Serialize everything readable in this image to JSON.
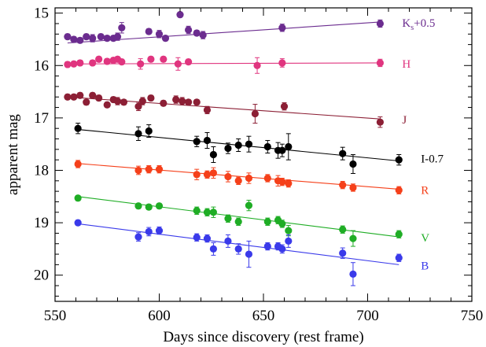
{
  "chart_data": {
    "type": "scatter",
    "title": "",
    "xlabel": "Days since discovery (rest frame)",
    "ylabel": "apparent mag",
    "xlim": [
      550,
      750
    ],
    "ylim": [
      20.5,
      14.9
    ],
    "y_inverted": true,
    "grid": false,
    "legend": "inline labels at right of each series",
    "x_ticks": [
      550,
      600,
      650,
      700,
      750
    ],
    "y_ticks": [
      15,
      16,
      17,
      18,
      19,
      20
    ],
    "x_tick_labels": [
      "550",
      "600",
      "650",
      "700",
      "750"
    ],
    "y_tick_labels": [
      "15",
      "16",
      "17",
      "18",
      "19",
      "20"
    ],
    "series": [
      {
        "name": "Ks+0.5",
        "label_main": "K",
        "label_sub": "s",
        "label_tail": "+0.5",
        "color": "#6b2c8f",
        "fit": [
          [
            556,
            15.57
          ],
          [
            706,
            15.17
          ]
        ],
        "points": [
          [
            556,
            15.45,
            0.05
          ],
          [
            559,
            15.5,
            0.05
          ],
          [
            562,
            15.52,
            0.05
          ],
          [
            565,
            15.45,
            0.05
          ],
          [
            568,
            15.48,
            0.07
          ],
          [
            572,
            15.45,
            0.05
          ],
          [
            575,
            15.48,
            0.05
          ],
          [
            578,
            15.48,
            0.05
          ],
          [
            580,
            15.45,
            0.07
          ],
          [
            582,
            15.28,
            0.1
          ],
          [
            595,
            15.35,
            0.05
          ],
          [
            600,
            15.4,
            0.07
          ],
          [
            603,
            15.48,
            0.05
          ],
          [
            610,
            15.03,
            0.05
          ],
          [
            614,
            15.32,
            0.07
          ],
          [
            618,
            15.38,
            0.05
          ],
          [
            621,
            15.42,
            0.07
          ],
          [
            659,
            15.28,
            0.07
          ],
          [
            706,
            15.2,
            0.07
          ]
        ]
      },
      {
        "name": "H",
        "color": "#e0357f",
        "fit": [
          [
            556,
            15.97
          ],
          [
            706,
            15.95
          ]
        ],
        "points": [
          [
            556,
            15.98,
            0.05
          ],
          [
            559,
            15.97,
            0.05
          ],
          [
            562,
            15.95,
            0.05
          ],
          [
            568,
            15.95,
            0.05
          ],
          [
            571,
            15.88,
            0.05
          ],
          [
            575,
            15.92,
            0.05
          ],
          [
            578,
            15.9,
            0.05
          ],
          [
            580,
            15.88,
            0.05
          ],
          [
            582,
            15.93,
            0.05
          ],
          [
            591,
            15.97,
            0.1
          ],
          [
            596,
            15.88,
            0.05
          ],
          [
            602,
            15.88,
            0.05
          ],
          [
            609,
            15.97,
            0.12
          ],
          [
            614,
            15.93,
            0.05
          ],
          [
            647,
            16.0,
            0.15
          ],
          [
            659,
            15.95,
            0.08
          ],
          [
            706,
            15.95,
            0.07
          ]
        ]
      },
      {
        "name": "J",
        "color": "#8c1f35",
        "fit": [
          [
            556,
            16.6
          ],
          [
            706,
            17.02
          ]
        ],
        "points": [
          [
            556,
            16.6,
            0.05
          ],
          [
            559,
            16.6,
            0.05
          ],
          [
            562,
            16.57,
            0.05
          ],
          [
            565,
            16.7,
            0.05
          ],
          [
            568,
            16.57,
            0.05
          ],
          [
            571,
            16.62,
            0.05
          ],
          [
            575,
            16.75,
            0.05
          ],
          [
            578,
            16.65,
            0.05
          ],
          [
            580,
            16.68,
            0.07
          ],
          [
            583,
            16.7,
            0.05
          ],
          [
            590,
            16.78,
            0.08
          ],
          [
            592,
            16.68,
            0.07
          ],
          [
            596,
            16.62,
            0.05
          ],
          [
            602,
            16.72,
            0.05
          ],
          [
            608,
            16.65,
            0.07
          ],
          [
            611,
            16.68,
            0.07
          ],
          [
            614,
            16.7,
            0.05
          ],
          [
            618,
            16.7,
            0.05
          ],
          [
            623,
            16.85,
            0.07
          ],
          [
            646,
            16.92,
            0.18
          ],
          [
            660,
            16.78,
            0.07
          ],
          [
            706,
            17.08,
            0.1
          ]
        ]
      },
      {
        "name": "I-0.7",
        "color": "#000000",
        "fit": [
          [
            561,
            17.22
          ],
          [
            715,
            17.82
          ]
        ],
        "points": [
          [
            561,
            17.2,
            0.1
          ],
          [
            590,
            17.3,
            0.13
          ],
          [
            595,
            17.25,
            0.12
          ],
          [
            618,
            17.45,
            0.1
          ],
          [
            623,
            17.43,
            0.15
          ],
          [
            626,
            17.7,
            0.15
          ],
          [
            633,
            17.58,
            0.1
          ],
          [
            638,
            17.52,
            0.12
          ],
          [
            643,
            17.5,
            0.15
          ],
          [
            652,
            17.55,
            0.12
          ],
          [
            657,
            17.62,
            0.15
          ],
          [
            659,
            17.62,
            0.12
          ],
          [
            662,
            17.55,
            0.25
          ],
          [
            688,
            17.68,
            0.12
          ],
          [
            693,
            17.88,
            0.18
          ],
          [
            715,
            17.8,
            0.1
          ]
        ]
      },
      {
        "name": "R",
        "color": "#f5401a",
        "fit": [
          [
            561,
            17.87
          ],
          [
            715,
            18.36
          ]
        ],
        "points": [
          [
            561,
            17.88,
            0.07
          ],
          [
            590,
            18.0,
            0.08
          ],
          [
            595,
            17.98,
            0.07
          ],
          [
            600,
            17.98,
            0.07
          ],
          [
            618,
            18.08,
            0.1
          ],
          [
            623,
            18.08,
            0.07
          ],
          [
            626,
            18.05,
            0.1
          ],
          [
            633,
            18.12,
            0.1
          ],
          [
            638,
            18.2,
            0.07
          ],
          [
            643,
            18.15,
            0.1
          ],
          [
            652,
            18.15,
            0.07
          ],
          [
            657,
            18.2,
            0.1
          ],
          [
            659,
            18.22,
            0.07
          ],
          [
            662,
            18.25,
            0.07
          ],
          [
            688,
            18.28,
            0.07
          ],
          [
            693,
            18.33,
            0.07
          ],
          [
            715,
            18.38,
            0.07
          ]
        ]
      },
      {
        "name": "V",
        "color": "#1fad25",
        "fit": [
          [
            561,
            18.5
          ],
          [
            715,
            19.27
          ]
        ],
        "points": [
          [
            561,
            18.53,
            0.05
          ],
          [
            590,
            18.68,
            0.05
          ],
          [
            595,
            18.7,
            0.05
          ],
          [
            600,
            18.68,
            0.05
          ],
          [
            618,
            18.77,
            0.07
          ],
          [
            623,
            18.8,
            0.07
          ],
          [
            626,
            18.8,
            0.1
          ],
          [
            633,
            18.92,
            0.07
          ],
          [
            638,
            18.98,
            0.07
          ],
          [
            643,
            18.67,
            0.1
          ],
          [
            652,
            18.98,
            0.07
          ],
          [
            657,
            18.95,
            0.07
          ],
          [
            659,
            19.02,
            0.07
          ],
          [
            662,
            19.15,
            0.1
          ],
          [
            688,
            19.13,
            0.07
          ],
          [
            693,
            19.3,
            0.15
          ],
          [
            715,
            19.22,
            0.07
          ]
        ]
      },
      {
        "name": "B",
        "color": "#3a3aea",
        "fit": [
          [
            561,
            19.02
          ],
          [
            715,
            19.8
          ]
        ],
        "points": [
          [
            561,
            19.0,
            0.05
          ],
          [
            590,
            19.27,
            0.08
          ],
          [
            595,
            19.17,
            0.08
          ],
          [
            600,
            19.15,
            0.07
          ],
          [
            618,
            19.28,
            0.07
          ],
          [
            623,
            19.3,
            0.07
          ],
          [
            626,
            19.5,
            0.12
          ],
          [
            633,
            19.35,
            0.12
          ],
          [
            638,
            19.5,
            0.1
          ],
          [
            643,
            19.6,
            0.25
          ],
          [
            652,
            19.45,
            0.07
          ],
          [
            657,
            19.45,
            0.07
          ],
          [
            659,
            19.5,
            0.08
          ],
          [
            662,
            19.35,
            0.12
          ],
          [
            688,
            19.58,
            0.1
          ],
          [
            693,
            19.98,
            0.22
          ],
          [
            715,
            19.67,
            0.07
          ]
        ]
      }
    ]
  }
}
